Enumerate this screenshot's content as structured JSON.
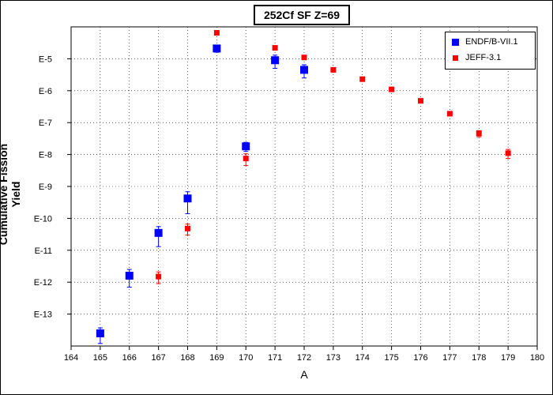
{
  "chart_data": {
    "type": "scatter",
    "title": "252Cf SF Z=69",
    "xlabel": "A",
    "ylabel": "Cumulative Fission Yield",
    "xlim": [
      164,
      180
    ],
    "x_ticks": [
      "164",
      "165",
      "166",
      "167",
      "168",
      "169",
      "170",
      "171",
      "172",
      "173",
      "174",
      "175",
      "176",
      "177",
      "178",
      "179",
      "180"
    ],
    "y_scale": "log",
    "ylim": [
      1e-14,
      0.0001
    ],
    "y_ticks": [
      {
        "value": 1e-05,
        "label": "E-5"
      },
      {
        "value": 1e-06,
        "label": "E-6"
      },
      {
        "value": 1e-07,
        "label": "E-7"
      },
      {
        "value": 1e-08,
        "label": "E-8"
      },
      {
        "value": 1e-09,
        "label": "E-9"
      },
      {
        "value": 1e-10,
        "label": "E-10"
      },
      {
        "value": 1e-11,
        "label": "E-11"
      },
      {
        "value": 1e-12,
        "label": "E-12"
      },
      {
        "value": 1e-13,
        "label": "E-13"
      }
    ],
    "grid": true,
    "legend_position": "top-right",
    "series": [
      {
        "name": "ENDF/B-VII.1",
        "color": "#0000ff",
        "marker": "square-large",
        "points": [
          {
            "x": 165,
            "y": 2.5e-14,
            "err_low": 1.2e-14,
            "err_high": 3.7e-14
          },
          {
            "x": 166,
            "y": 1.6e-12,
            "err_low": 7e-13,
            "err_high": 2.5e-12
          },
          {
            "x": 167,
            "y": 3.5e-11,
            "err_low": 1.3e-11,
            "err_high": 5.5e-11
          },
          {
            "x": 168,
            "y": 4.2e-10,
            "err_low": 1.4e-10,
            "err_high": 6.8e-10
          },
          {
            "x": 169,
            "y": 2.1e-05,
            "err_low": 1.6e-05,
            "err_high": 2.6e-05
          },
          {
            "x": 170,
            "y": 1.8e-08,
            "err_low": 1.25e-08,
            "err_high": 2.4e-08
          },
          {
            "x": 171,
            "y": 9e-06,
            "err_low": 5e-06,
            "err_high": 1.3e-05
          },
          {
            "x": 172,
            "y": 4.5e-06,
            "err_low": 2.5e-06,
            "err_high": 6.5e-06
          }
        ]
      },
      {
        "name": "JEFF-3.1",
        "color": "#ff0000",
        "marker": "square-small",
        "points": [
          {
            "x": 167,
            "y": 1.5e-12,
            "err_low": 9e-13,
            "err_high": 2.1e-12
          },
          {
            "x": 168,
            "y": 4.8e-11,
            "err_low": 3e-11,
            "err_high": 6.6e-11
          },
          {
            "x": 169,
            "y": 6.5e-05,
            "err_low": 6.5e-05,
            "err_high": 6.5e-05
          },
          {
            "x": 170,
            "y": 7.5e-09,
            "err_low": 4.5e-09,
            "err_high": 1.05e-08
          },
          {
            "x": 171,
            "y": 2.2e-05,
            "err_low": 2.2e-05,
            "err_high": 2.2e-05
          },
          {
            "x": 172,
            "y": 1.1e-05,
            "err_low": 1.1e-05,
            "err_high": 1.1e-05
          },
          {
            "x": 173,
            "y": 4.5e-06,
            "err_low": 4.5e-06,
            "err_high": 4.5e-06
          },
          {
            "x": 174,
            "y": 2.3e-06,
            "err_low": 2.3e-06,
            "err_high": 2.3e-06
          },
          {
            "x": 175,
            "y": 1.1e-06,
            "err_low": 1.1e-06,
            "err_high": 1.1e-06
          },
          {
            "x": 176,
            "y": 4.8e-07,
            "err_low": 4.8e-07,
            "err_high": 4.8e-07
          },
          {
            "x": 177,
            "y": 1.9e-07,
            "err_low": 1.9e-07,
            "err_high": 1.9e-07
          },
          {
            "x": 178,
            "y": 4.6e-08,
            "err_low": 3.6e-08,
            "err_high": 5.6e-08
          },
          {
            "x": 179,
            "y": 1.1e-08,
            "err_low": 7.5e-09,
            "err_high": 1.45e-08
          }
        ]
      }
    ]
  }
}
